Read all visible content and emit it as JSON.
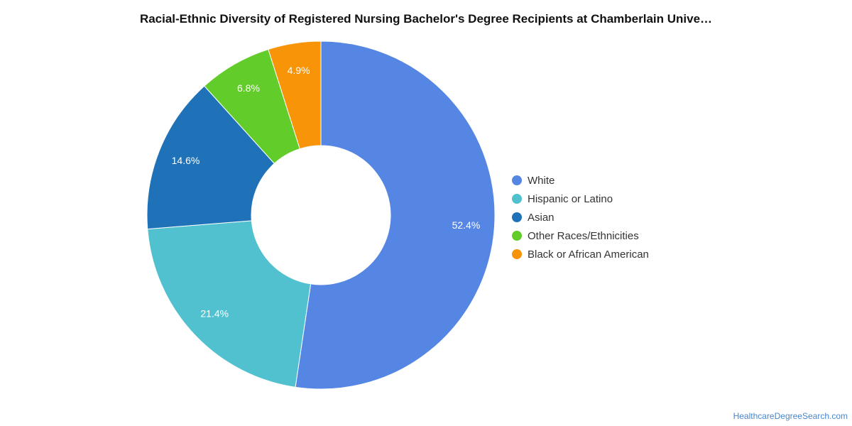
{
  "chart_data": {
    "type": "pie",
    "style": "donut",
    "title": "Racial-Ethnic Diversity of Registered Nursing Bachelor's Degree Recipients at Chamberlain Unive…",
    "slices": [
      {
        "name": "White",
        "value": 52.4,
        "label": "52.4%",
        "color": "#5586e3"
      },
      {
        "name": "Hispanic or Latino",
        "value": 21.4,
        "label": "21.4%",
        "color": "#51c1cf"
      },
      {
        "name": "Asian",
        "value": 14.6,
        "label": "14.6%",
        "color": "#1f72b8"
      },
      {
        "name": "Other Races/Ethnicities",
        "value": 6.8,
        "label": "6.8%",
        "color": "#62cd2a"
      },
      {
        "name": "Black or African American",
        "value": 4.9,
        "label": "4.9%",
        "color": "#f79408"
      }
    ],
    "legend_position": "right"
  },
  "source": {
    "text": "HealthcareDegreeSearch.com"
  }
}
